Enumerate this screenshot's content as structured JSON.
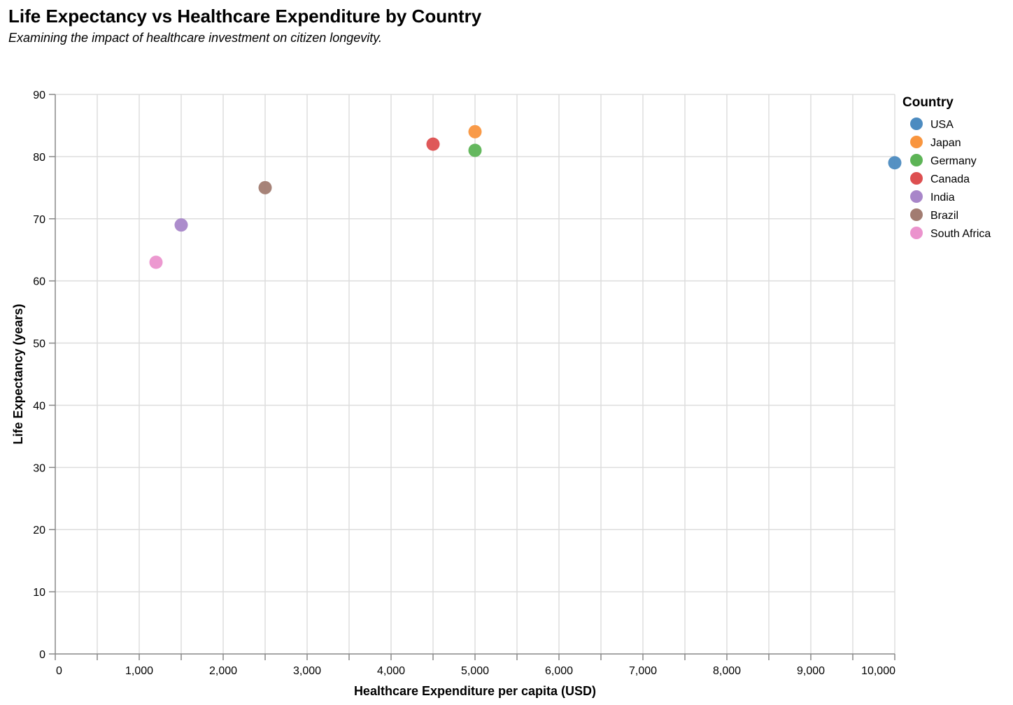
{
  "chart_data": {
    "type": "scatter",
    "title": "Life Expectancy vs Healthcare Expenditure by Country",
    "subtitle": "Examining the impact of healthcare investment on citizen longevity.",
    "xlabel": "Healthcare Expenditure per capita (USD)",
    "ylabel": "Life Expectancy (years)",
    "xlim": [
      0,
      10000
    ],
    "ylim": [
      0,
      90
    ],
    "x_ticks": [
      0,
      1000,
      2000,
      3000,
      4000,
      5000,
      6000,
      7000,
      8000,
      9000,
      10000
    ],
    "x_tick_labels": [
      "0",
      "1,000",
      "2,000",
      "3,000",
      "4,000",
      "5,000",
      "6,000",
      "7,000",
      "8,000",
      "9,000",
      "10,000"
    ],
    "y_ticks": [
      0,
      10,
      20,
      30,
      40,
      50,
      60,
      70,
      80,
      90
    ],
    "y_tick_labels": [
      "0",
      "10",
      "20",
      "30",
      "40",
      "50",
      "60",
      "70",
      "80",
      "90"
    ],
    "grid": true,
    "legend": {
      "title": "Country",
      "placement": "right"
    },
    "series": [
      {
        "name": "USA",
        "color": "#4c8bc0",
        "x": 10000,
        "y": 79
      },
      {
        "name": "Japan",
        "color": "#f9953e",
        "x": 5000,
        "y": 84
      },
      {
        "name": "Germany",
        "color": "#5db456",
        "x": 5000,
        "y": 81
      },
      {
        "name": "Canada",
        "color": "#dd4f50",
        "x": 4500,
        "y": 82
      },
      {
        "name": "India",
        "color": "#a886c9",
        "x": 1500,
        "y": 69
      },
      {
        "name": "Brazil",
        "color": "#a27c71",
        "x": 2500,
        "y": 75
      },
      {
        "name": "South Africa",
        "color": "#eb93cd",
        "x": 1200,
        "y": 63
      }
    ]
  }
}
